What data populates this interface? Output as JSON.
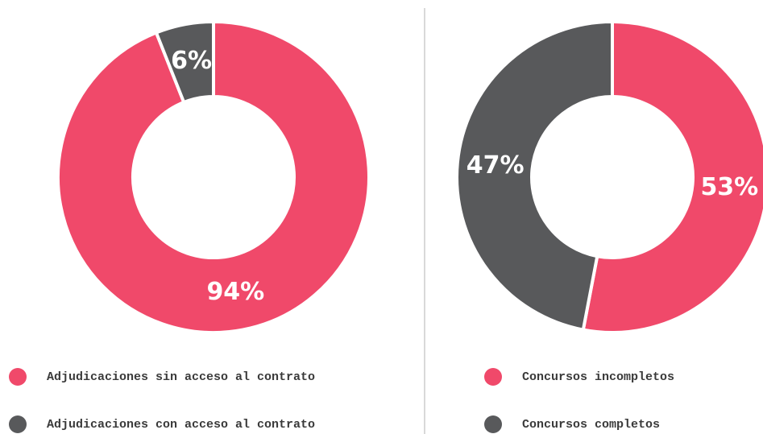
{
  "chart_data": [
    {
      "type": "donut",
      "categories": [
        "Adjudicaciones sin acceso al contrato",
        "Adjudicaciones con acceso al contrato"
      ],
      "values": [
        94,
        6
      ],
      "value_labels": [
        "94%",
        "6%"
      ],
      "colors": [
        "#f0496a",
        "#58595b"
      ]
    },
    {
      "type": "donut",
      "categories": [
        "Concursos incompletos",
        "Concursos completos"
      ],
      "values": [
        53,
        47
      ],
      "value_labels": [
        "53%",
        "47%"
      ],
      "colors": [
        "#f0496a",
        "#58595b"
      ]
    }
  ]
}
